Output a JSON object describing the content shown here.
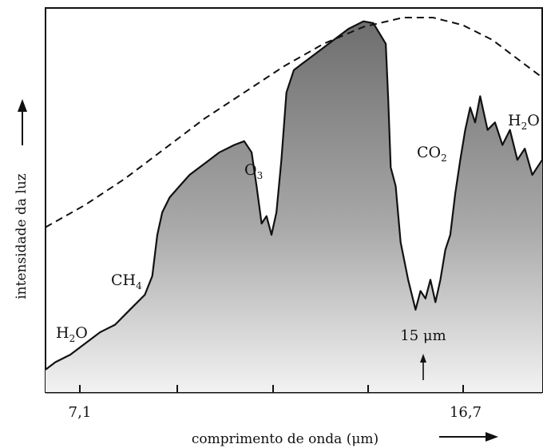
{
  "chart_data": {
    "type": "area",
    "title": "",
    "xlabel": "comprimento de onda (μm)",
    "ylabel": "intensidade da luz",
    "x_tick_labels": [
      "7,1",
      "16,7"
    ],
    "grid": false,
    "legend": "none",
    "annotations": [
      {
        "sym": "H",
        "sub": "2",
        "tail": "O",
        "near": "left edge, low"
      },
      {
        "sym": "CH",
        "sub": "4",
        "tail": "",
        "near": "before first rise"
      },
      {
        "sym": "O",
        "sub": "3",
        "tail": "",
        "near": "first dip"
      },
      {
        "sym": "CO",
        "sub": "2",
        "tail": "",
        "near": "deep trough"
      },
      {
        "sym": "H",
        "sub": "2",
        "tail": "O",
        "near": "right side"
      }
    ],
    "marker_label": "15 μm",
    "series": [
      {
        "name": "",
        "style": "dashed envelope",
        "points": [
          [
            0.0,
            0.44
          ],
          [
            0.08,
            0.5
          ],
          [
            0.16,
            0.57
          ],
          [
            0.24,
            0.65
          ],
          [
            0.32,
            0.73
          ],
          [
            0.4,
            0.8
          ],
          [
            0.48,
            0.87
          ],
          [
            0.56,
            0.93
          ],
          [
            0.64,
            0.975
          ],
          [
            0.72,
            1.0
          ],
          [
            0.78,
            1.0
          ],
          [
            0.84,
            0.98
          ],
          [
            0.9,
            0.94
          ],
          [
            0.96,
            0.88
          ],
          [
            1.0,
            0.84
          ]
        ]
      },
      {
        "name": "",
        "style": "filled spectrum",
        "points": [
          [
            0.0,
            0.06
          ],
          [
            0.02,
            0.08
          ],
          [
            0.05,
            0.1
          ],
          [
            0.08,
            0.13
          ],
          [
            0.11,
            0.16
          ],
          [
            0.14,
            0.18
          ],
          [
            0.17,
            0.22
          ],
          [
            0.2,
            0.26
          ],
          [
            0.215,
            0.31
          ],
          [
            0.225,
            0.42
          ],
          [
            0.235,
            0.48
          ],
          [
            0.25,
            0.52
          ],
          [
            0.27,
            0.55
          ],
          [
            0.29,
            0.58
          ],
          [
            0.31,
            0.6
          ],
          [
            0.33,
            0.62
          ],
          [
            0.35,
            0.64
          ],
          [
            0.38,
            0.66
          ],
          [
            0.4,
            0.67
          ],
          [
            0.415,
            0.64
          ],
          [
            0.425,
            0.55
          ],
          [
            0.435,
            0.45
          ],
          [
            0.445,
            0.47
          ],
          [
            0.455,
            0.42
          ],
          [
            0.465,
            0.48
          ],
          [
            0.475,
            0.62
          ],
          [
            0.485,
            0.8
          ],
          [
            0.5,
            0.86
          ],
          [
            0.52,
            0.88
          ],
          [
            0.55,
            0.91
          ],
          [
            0.58,
            0.94
          ],
          [
            0.61,
            0.97
          ],
          [
            0.64,
            0.99
          ],
          [
            0.66,
            0.985
          ],
          [
            0.685,
            0.93
          ],
          [
            0.69,
            0.78
          ],
          [
            0.695,
            0.6
          ],
          [
            0.705,
            0.55
          ],
          [
            0.715,
            0.4
          ],
          [
            0.73,
            0.3
          ],
          [
            0.745,
            0.22
          ],
          [
            0.755,
            0.27
          ],
          [
            0.765,
            0.25
          ],
          [
            0.775,
            0.3
          ],
          [
            0.785,
            0.24
          ],
          [
            0.795,
            0.3
          ],
          [
            0.805,
            0.38
          ],
          [
            0.815,
            0.42
          ],
          [
            0.825,
            0.53
          ],
          [
            0.835,
            0.62
          ],
          [
            0.845,
            0.7
          ],
          [
            0.855,
            0.76
          ],
          [
            0.865,
            0.72
          ],
          [
            0.875,
            0.79
          ],
          [
            0.89,
            0.7
          ],
          [
            0.905,
            0.72
          ],
          [
            0.92,
            0.66
          ],
          [
            0.935,
            0.7
          ],
          [
            0.95,
            0.62
          ],
          [
            0.965,
            0.65
          ],
          [
            0.98,
            0.58
          ],
          [
            1.0,
            0.62
          ]
        ]
      }
    ]
  }
}
